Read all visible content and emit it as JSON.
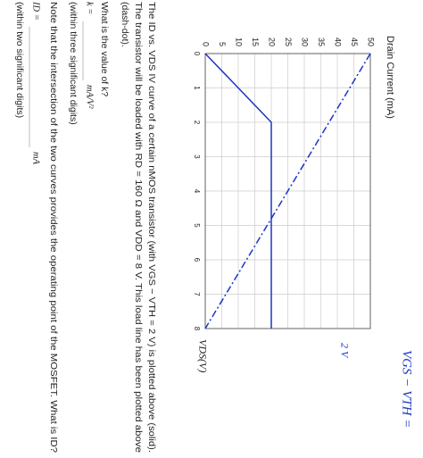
{
  "header": {
    "expression": "VGS − VTH =",
    "answer": "2 V"
  },
  "chart_data": {
    "type": "line",
    "ylabel": "Drain Current (mA)",
    "xlabel": "VDS(V)",
    "xlim": [
      0,
      8
    ],
    "ylim": [
      0,
      50
    ],
    "xticks": [
      0,
      1,
      2,
      3,
      4,
      5,
      6,
      7,
      8
    ],
    "yticks": [
      0,
      5,
      10,
      15,
      20,
      25,
      30,
      35,
      40,
      45,
      50
    ],
    "grid": true,
    "series": [
      {
        "x": [
          0,
          2,
          8
        ],
        "values": [
          0,
          20,
          20
        ],
        "color": "#1a35c4",
        "style": "solid"
      },
      {
        "x": [
          0,
          8
        ],
        "values": [
          50,
          0
        ],
        "color": "#1a35c4",
        "style": "dash-dot"
      }
    ]
  },
  "text": {
    "paragraph": [
      "The ID vs. VDS IV curve of a certain nMOS transistor (with VGS − VTH = 2 V) is plotted above (solid).",
      "The transistor will be loaded with RD = 160 Ω and VDD = 8 V. This load line has been plotted above",
      "(dash-dot)."
    ],
    "q1": "What is the value of k?",
    "q1_lhs": "k =",
    "q1_unit": "mA/V²",
    "q1_note": "(within three significant digits)",
    "q2": "Note that the intersection of the two curves provides the operating point of the MOSFET. What is ID?",
    "q2_lhs": "ID =",
    "q2_unit": "mA",
    "q2_note": "(within two significant digits)"
  }
}
